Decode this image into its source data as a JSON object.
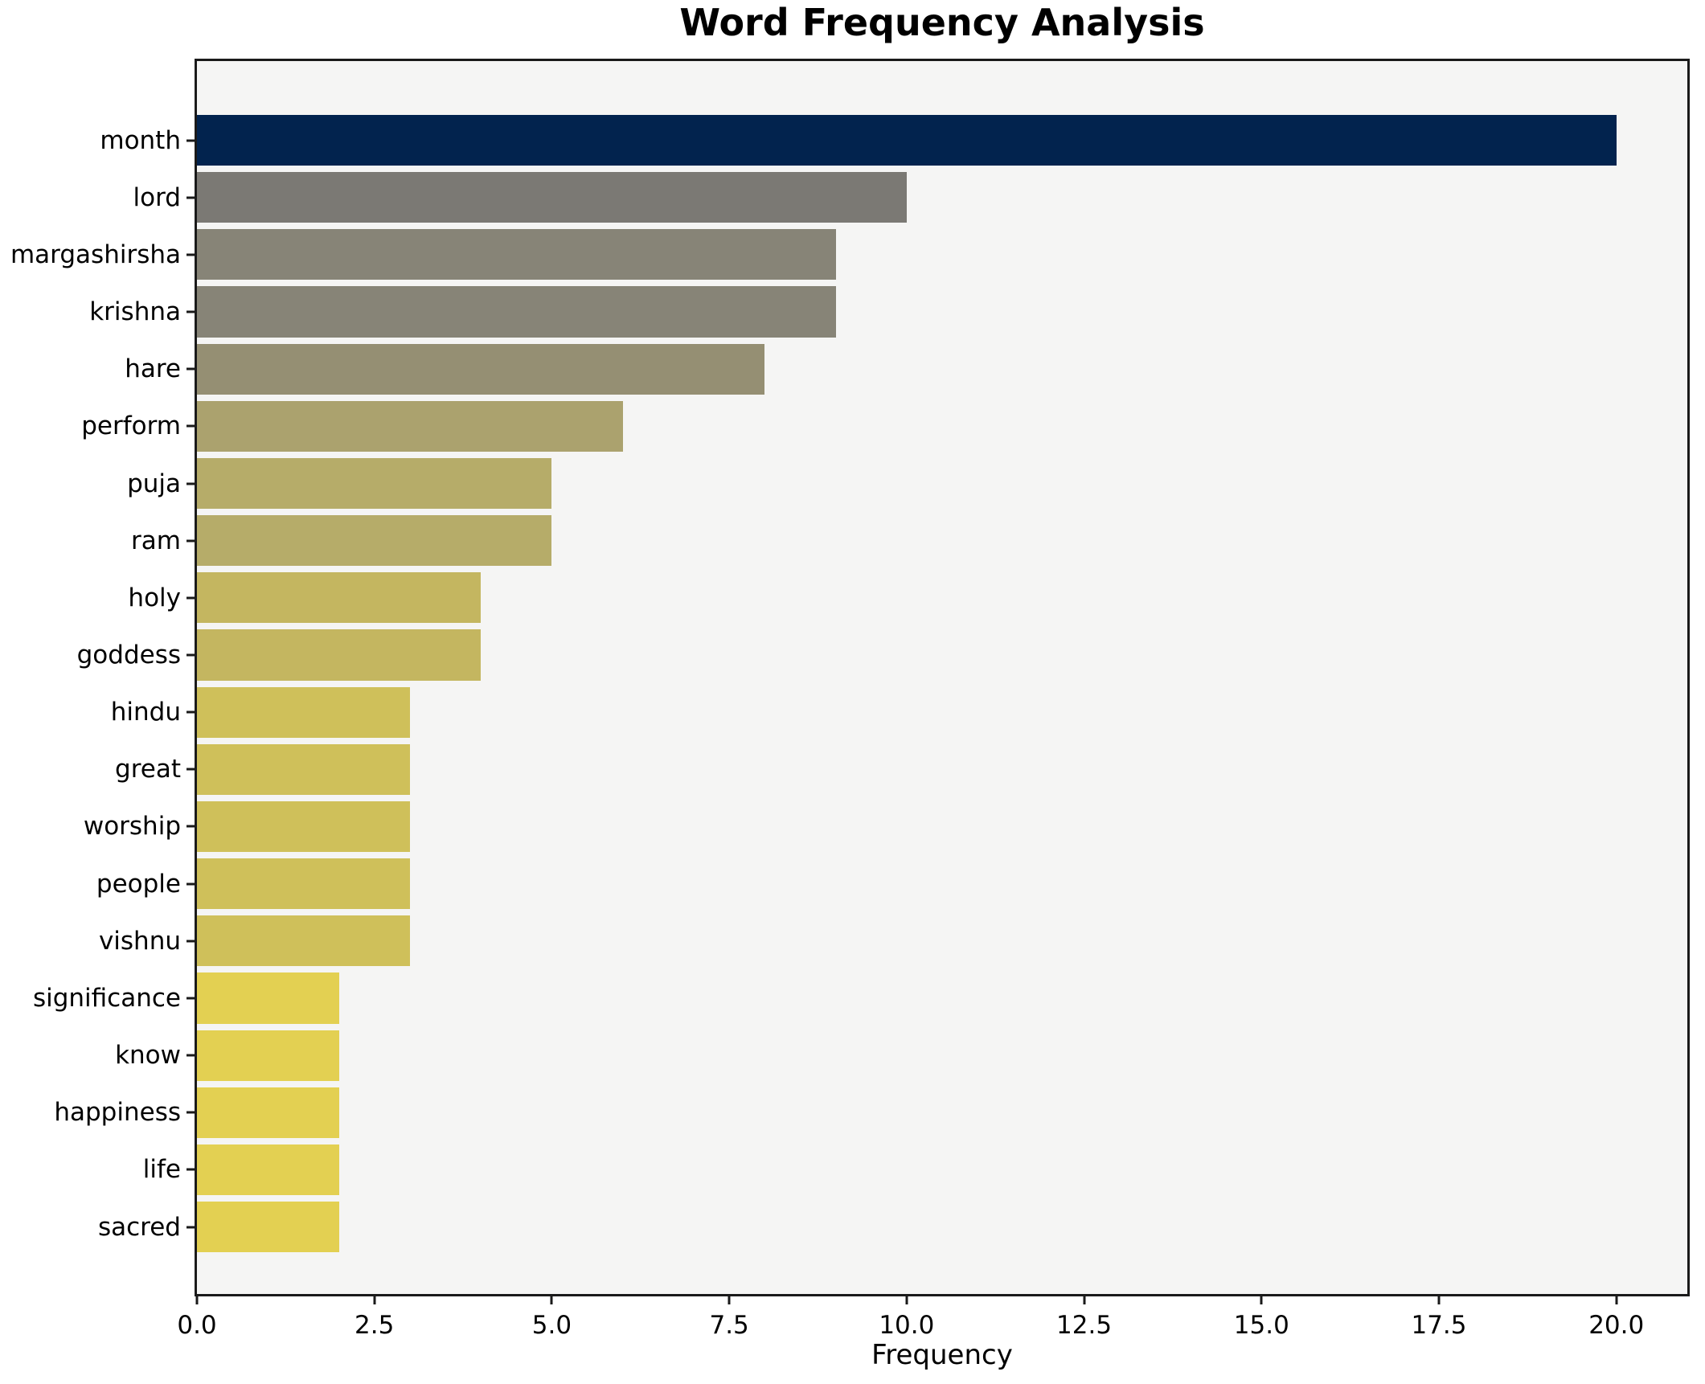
{
  "chart_data": {
    "type": "bar",
    "orientation": "horizontal",
    "title": "Word Frequency Analysis",
    "xlabel": "Frequency",
    "ylabel": "",
    "categories": [
      "month",
      "lord",
      "margashirsha",
      "krishna",
      "hare",
      "perform",
      "puja",
      "ram",
      "holy",
      "goddess",
      "hindu",
      "great",
      "worship",
      "people",
      "vishnu",
      "significance",
      "know",
      "happiness",
      "life",
      "sacred"
    ],
    "values": [
      20,
      10,
      9,
      9,
      8,
      6,
      5,
      5,
      4,
      4,
      3,
      3,
      3,
      3,
      3,
      2,
      2,
      2,
      2,
      2
    ],
    "bar_colors": [
      "#02234e",
      "#7b7974",
      "#878477",
      "#878477",
      "#958f73",
      "#aba26e",
      "#b6ac69",
      "#b6ac69",
      "#c4b660",
      "#c4b660",
      "#cfc05a",
      "#cfc05a",
      "#cfc05a",
      "#cfc05a",
      "#cfc05a",
      "#e3d052",
      "#e3d052",
      "#e3d052",
      "#e3d052",
      "#e3d052"
    ],
    "xlim": [
      0,
      21
    ],
    "x_ticks": [
      0,
      2.5,
      5,
      7.5,
      10,
      12.5,
      15,
      17.5,
      20
    ],
    "x_tick_labels": [
      "0.0",
      "2.5",
      "5.0",
      "7.5",
      "10.0",
      "12.5",
      "15.0",
      "17.5",
      "20.0"
    ],
    "grid": false,
    "legend": null,
    "plot_background": "#f5f5f4",
    "figure_background": "#ffffff",
    "spine_color": "#1a1a1a"
  }
}
